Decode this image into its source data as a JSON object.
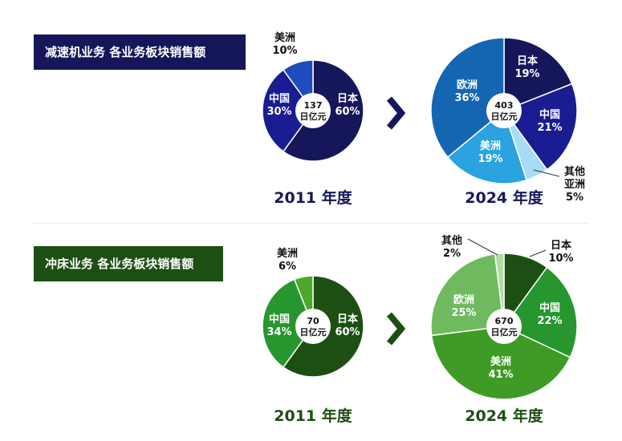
{
  "banners": {
    "top": "减速机业务 各业务板块销售额",
    "bottom": "冲床业务 各业务板块销售额"
  },
  "colors": {
    "reducer_year": "#15175a",
    "press_year": "#1d4f13",
    "arrow_top": "#15175a",
    "arrow_bottom": "#1d4f13"
  },
  "chart_data": [
    {
      "type": "pie",
      "id": "reducer-2011",
      "title": "2011 年度",
      "center_value": "137",
      "center_unit": "日亿元",
      "slices": [
        {
          "label": "日本",
          "pct": "60%",
          "value": 60,
          "color": "#15175a"
        },
        {
          "label": "中国",
          "pct": "30%",
          "value": 30,
          "color": "#1a1c92"
        },
        {
          "label": "美洲",
          "pct": "10%",
          "value": 10,
          "color": "#1d4dbd"
        }
      ]
    },
    {
      "type": "pie",
      "id": "reducer-2024",
      "title": "2024 年度",
      "center_value": "403",
      "center_unit": "日亿元",
      "slices": [
        {
          "label": "日本",
          "pct": "19%",
          "value": 19,
          "color": "#15175a"
        },
        {
          "label": "中国",
          "pct": "21%",
          "value": 21,
          "color": "#1a1c92"
        },
        {
          "label": "其他亚洲",
          "label_lines": [
            "其他",
            "亚洲"
          ],
          "pct": "5%",
          "value": 5,
          "color": "#a6dcf4"
        },
        {
          "label": "美洲",
          "pct": "19%",
          "value": 19,
          "color": "#2aa3e0"
        },
        {
          "label": "欧洲",
          "pct": "36%",
          "value": 36,
          "color": "#1466b3"
        }
      ]
    },
    {
      "type": "pie",
      "id": "press-2011",
      "title": "2011 年度",
      "center_value": "70",
      "center_unit": "日亿元",
      "slices": [
        {
          "label": "日本",
          "pct": "60%",
          "value": 60,
          "color": "#1d4f13"
        },
        {
          "label": "中国",
          "pct": "34%",
          "value": 34,
          "color": "#27962f"
        },
        {
          "label": "美洲",
          "pct": "6%",
          "value": 6,
          "color": "#4aa82a"
        }
      ]
    },
    {
      "type": "pie",
      "id": "press-2024",
      "title": "2024 年度",
      "center_value": "670",
      "center_unit": "日亿元",
      "slices": [
        {
          "label": "日本",
          "pct": "10%",
          "value": 10,
          "color": "#1d4f13"
        },
        {
          "label": "中国",
          "pct": "22%",
          "value": 22,
          "color": "#27962f"
        },
        {
          "label": "美洲",
          "pct": "41%",
          "value": 41,
          "color": "#3e9b26"
        },
        {
          "label": "欧洲",
          "pct": "25%",
          "value": 25,
          "color": "#6fba5f"
        },
        {
          "label": "其他",
          "pct": "2%",
          "value": 2,
          "color": "#b3dca4"
        }
      ]
    }
  ]
}
